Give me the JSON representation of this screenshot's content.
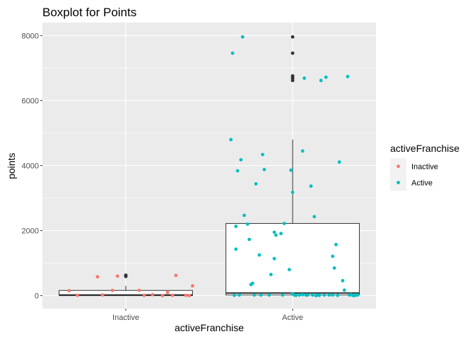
{
  "chart_data": {
    "type": "boxplot",
    "title": "Boxplot for Points",
    "xlabel": "activeFranchise",
    "ylabel": "points",
    "categories": [
      "Inactive",
      "Active"
    ],
    "ylim": [
      -400,
      8400
    ],
    "yticks": [
      0,
      2000,
      4000,
      6000,
      8000
    ],
    "grid": true,
    "legend": {
      "title": "activeFranchise",
      "position": "right",
      "entries": [
        {
          "label": "Inactive",
          "color": "#F8766D"
        },
        {
          "label": "Active",
          "color": "#00BFC4"
        }
      ]
    },
    "boxes": [
      {
        "category": "Inactive",
        "lower_whisker": 0,
        "q1": 0,
        "median": 20,
        "q3": 160,
        "upper_whisker": 300,
        "outliers": [
          590,
          610,
          630
        ]
      },
      {
        "category": "Active",
        "lower_whisker": 0,
        "q1": 20,
        "median": 80,
        "q3": 2220,
        "upper_whisker": 4800,
        "outliers": [
          6620,
          6680,
          6720,
          6760,
          7460,
          7960
        ]
      }
    ],
    "series": [
      {
        "name": "Inactive",
        "color": "#F8766D",
        "x": [
          -0.34,
          -0.29,
          -0.17,
          -0.14,
          -0.08,
          -0.05,
          0.08,
          0.11,
          0.16,
          0.22,
          0.25,
          0.28,
          0.3,
          0.36,
          0.38,
          0.4
        ],
        "values": [
          150,
          10,
          580,
          20,
          160,
          600,
          160,
          10,
          30,
          0,
          100,
          10,
          620,
          10,
          0,
          300
        ]
      },
      {
        "name": "Active",
        "color": "#00BFC4",
        "x": [
          -0.37,
          -0.36,
          -0.34,
          -0.34,
          -0.33,
          -0.31,
          -0.3,
          -0.29,
          -0.27,
          -0.26,
          -0.25,
          -0.24,
          -0.22,
          -0.2,
          -0.18,
          -0.17,
          -0.14,
          -0.13,
          -0.11,
          -0.11,
          -0.1,
          -0.07,
          -0.06,
          -0.05,
          -0.02,
          -0.01,
          0.0,
          0.01,
          0.02,
          0.04,
          0.06,
          0.07,
          0.09,
          0.11,
          0.13,
          0.15,
          0.17,
          0.19,
          0.2,
          0.22,
          0.24,
          0.25,
          0.26,
          0.28,
          0.3,
          0.31,
          0.33,
          0.34,
          0.36,
          0.37,
          0.38,
          0.39,
          -0.32,
          0.0,
          0.12,
          0.27,
          0.06,
          0.14,
          -0.19,
          -0.35,
          0.24,
          0.16,
          0.35,
          0.08,
          -0.23
        ],
        "values": [
          4800,
          7460,
          1430,
          2130,
          3840,
          4180,
          7960,
          2470,
          2200,
          1730,
          340,
          380,
          3440,
          1250,
          4340,
          3880,
          20,
          650,
          1140,
          1950,
          1860,
          1910,
          20,
          2220,
          800,
          3860,
          3180,
          20,
          10,
          20,
          4450,
          6690,
          20,
          3370,
          2430,
          20,
          6620,
          20,
          6720,
          20,
          1210,
          850,
          1570,
          4110,
          460,
          170,
          6740,
          20,
          10,
          0,
          20,
          20,
          20,
          60,
          20,
          10,
          30,
          0,
          20,
          10,
          20,
          10,
          30,
          20,
          20
        ]
      }
    ]
  }
}
